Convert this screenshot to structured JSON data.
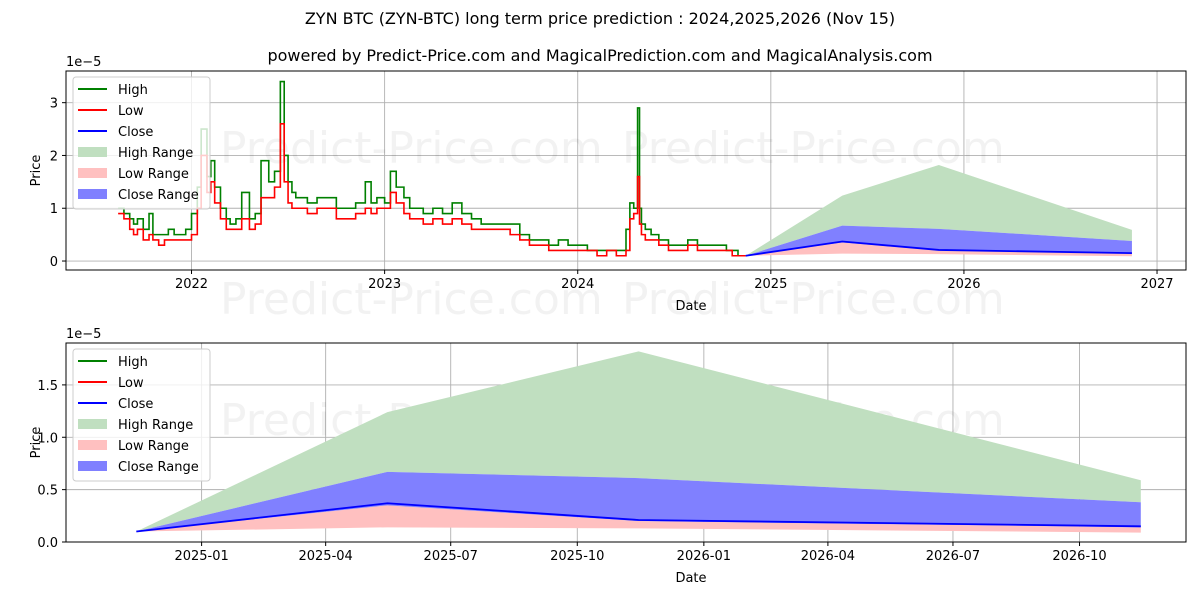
{
  "header": {
    "title": "ZYN BTC (ZYN-BTC) long term price prediction : 2024,2025,2026 (Nov 15)",
    "subtitle": "powered by Predict-Price.com and MagicalPrediction.com and MagicalAnalysis.com"
  },
  "watermark": "Predict-Price.com",
  "colors": {
    "high": "#008000",
    "low": "#ff0000",
    "close": "#0000ff",
    "high_range": "#c0dfc0",
    "low_range": "#ffc0c0",
    "close_range": "#8080ff",
    "grid": "#b0b0b0"
  },
  "legend": [
    {
      "label": "High",
      "kind": "line",
      "color": "#008000"
    },
    {
      "label": "Low",
      "kind": "line",
      "color": "#ff0000"
    },
    {
      "label": "Close",
      "kind": "line",
      "color": "#0000ff"
    },
    {
      "label": "High Range",
      "kind": "patch",
      "color": "#c0dfc0"
    },
    {
      "label": "Low Range",
      "kind": "patch",
      "color": "#ffc0c0"
    },
    {
      "label": "Close Range",
      "kind": "patch",
      "color": "#8080ff"
    }
  ],
  "chart_data": [
    {
      "type": "line",
      "title": "ZYN BTC (ZYN-BTC) long term price prediction : 2024,2025,2026 (Nov 15)",
      "subtitle": "powered by Predict-Price.com and MagicalPrediction.com and MagicalAnalysis.com",
      "xlabel": "Date",
      "ylabel": "Price",
      "y_scale_label": "1e−5",
      "xlim": [
        2021.35,
        2027.15
      ],
      "ylim": [
        -0.17,
        3.6
      ],
      "xticks": [
        2022,
        2023,
        2024,
        2025,
        2026,
        2027
      ],
      "xtick_labels": [
        "2022",
        "2023",
        "2024",
        "2025",
        "2026",
        "2027"
      ],
      "yticks": [
        0,
        1,
        2,
        3
      ],
      "ytick_labels": [
        "0",
        "1",
        "2",
        "3"
      ],
      "grid": true,
      "legend_position": "upper left",
      "history_x": [
        2021.62,
        2021.65,
        2021.68,
        2021.7,
        2021.72,
        2021.75,
        2021.78,
        2021.8,
        2021.83,
        2021.86,
        2021.88,
        2021.91,
        2021.94,
        2021.97,
        2022.0,
        2022.03,
        2022.05,
        2022.08,
        2022.1,
        2022.12,
        2022.15,
        2022.18,
        2022.2,
        2022.23,
        2022.26,
        2022.3,
        2022.33,
        2022.36,
        2022.4,
        2022.43,
        2022.46,
        2022.48,
        2022.5,
        2022.52,
        2022.54,
        2022.57,
        2022.6,
        2022.65,
        2022.7,
        2022.75,
        2022.8,
        2022.85,
        2022.9,
        2022.93,
        2022.96,
        2023.0,
        2023.03,
        2023.06,
        2023.1,
        2023.13,
        2023.16,
        2023.2,
        2023.25,
        2023.3,
        2023.35,
        2023.4,
        2023.45,
        2023.5,
        2023.55,
        2023.6,
        2023.65,
        2023.7,
        2023.75,
        2023.8,
        2023.85,
        2023.9,
        2023.95,
        2024.0,
        2024.05,
        2024.1,
        2024.15,
        2024.2,
        2024.25,
        2024.27,
        2024.29,
        2024.31,
        2024.32,
        2024.33,
        2024.35,
        2024.38,
        2024.42,
        2024.47,
        2024.52,
        2024.57,
        2024.62,
        2024.67,
        2024.72,
        2024.77,
        2024.8,
        2024.83,
        2024.87
      ],
      "high": [
        1.0,
        0.9,
        0.8,
        0.7,
        0.8,
        0.6,
        0.9,
        0.5,
        0.5,
        0.5,
        0.6,
        0.5,
        0.5,
        0.6,
        0.9,
        1.4,
        2.5,
        1.6,
        1.9,
        1.4,
        1.0,
        0.8,
        0.7,
        0.8,
        1.3,
        0.8,
        0.9,
        1.9,
        1.5,
        1.7,
        3.4,
        2.0,
        1.5,
        1.3,
        1.2,
        1.2,
        1.1,
        1.2,
        1.2,
        1.0,
        1.0,
        1.1,
        1.5,
        1.1,
        1.2,
        1.1,
        1.7,
        1.4,
        1.2,
        1.0,
        1.0,
        0.9,
        1.0,
        0.9,
        1.1,
        0.9,
        0.8,
        0.7,
        0.7,
        0.7,
        0.7,
        0.5,
        0.4,
        0.4,
        0.3,
        0.4,
        0.3,
        0.3,
        0.2,
        0.2,
        0.2,
        0.2,
        0.6,
        1.1,
        1.0,
        2.9,
        1.0,
        0.7,
        0.6,
        0.5,
        0.4,
        0.3,
        0.3,
        0.4,
        0.3,
        0.3,
        0.3,
        0.2,
        0.2,
        0.1,
        0.1
      ],
      "low": [
        0.9,
        0.8,
        0.6,
        0.5,
        0.6,
        0.4,
        0.5,
        0.4,
        0.3,
        0.4,
        0.4,
        0.4,
        0.4,
        0.4,
        0.5,
        1.0,
        2.0,
        1.3,
        1.5,
        1.1,
        0.8,
        0.6,
        0.6,
        0.6,
        0.8,
        0.6,
        0.7,
        1.2,
        1.2,
        1.4,
        2.6,
        1.5,
        1.1,
        1.0,
        1.0,
        1.0,
        0.9,
        1.0,
        1.0,
        0.8,
        0.8,
        0.9,
        1.0,
        0.9,
        1.0,
        1.0,
        1.3,
        1.1,
        0.9,
        0.8,
        0.8,
        0.7,
        0.8,
        0.7,
        0.8,
        0.7,
        0.6,
        0.6,
        0.6,
        0.6,
        0.5,
        0.4,
        0.3,
        0.3,
        0.2,
        0.2,
        0.2,
        0.2,
        0.2,
        0.1,
        0.2,
        0.1,
        0.2,
        0.8,
        0.9,
        1.6,
        0.7,
        0.5,
        0.4,
        0.4,
        0.3,
        0.2,
        0.2,
        0.3,
        0.2,
        0.2,
        0.2,
        0.2,
        0.1,
        0.1,
        0.1
      ],
      "forecast_x": [
        2024.87,
        2025.37,
        2025.87,
        2026.87
      ],
      "high_range": {
        "upper": [
          0.1,
          1.24,
          1.82,
          0.59
        ],
        "lower": [
          0.1,
          0.67,
          0.61,
          0.38
        ]
      },
      "close_range": {
        "upper": [
          0.1,
          0.67,
          0.61,
          0.38
        ],
        "lower": [
          0.1,
          0.35,
          0.2,
          0.14
        ]
      },
      "low_range": {
        "upper": [
          0.1,
          0.35,
          0.2,
          0.14
        ],
        "lower": [
          0.1,
          0.14,
          0.13,
          0.09
        ]
      },
      "close": [
        0.1,
        0.37,
        0.21,
        0.15
      ]
    },
    {
      "type": "area",
      "xlabel": "Date",
      "ylabel": "Price",
      "y_scale_label": "1e−5",
      "xlim": [
        2024.73,
        2026.96
      ],
      "ylim": [
        0.0,
        1.9
      ],
      "xticks": [
        2025.0,
        2025.247,
        2025.496,
        2025.748,
        2026.0,
        2026.247,
        2026.496,
        2026.748
      ],
      "xtick_labels": [
        "2025-01",
        "2025-04",
        "2025-07",
        "2025-10",
        "2026-01",
        "2026-04",
        "2026-07",
        "2026-10"
      ],
      "yticks": [
        0.0,
        0.5,
        1.0,
        1.5
      ],
      "ytick_labels": [
        "0.0",
        "0.5",
        "1.0",
        "1.5"
      ],
      "grid": true,
      "legend_position": "upper left",
      "forecast_x": [
        2024.87,
        2025.37,
        2025.87,
        2026.87
      ],
      "forecast_labels": [
        "2024-11-15",
        "2025-05-15",
        "2025-11-15",
        "2026-11-15"
      ],
      "high_range": {
        "upper": [
          0.1,
          1.24,
          1.82,
          0.59
        ],
        "lower": [
          0.1,
          0.67,
          0.61,
          0.38
        ]
      },
      "close_range": {
        "upper": [
          0.1,
          0.67,
          0.61,
          0.38
        ],
        "lower": [
          0.1,
          0.35,
          0.2,
          0.14
        ]
      },
      "low_range": {
        "upper": [
          0.1,
          0.35,
          0.2,
          0.14
        ],
        "lower": [
          0.1,
          0.14,
          0.13,
          0.09
        ]
      },
      "close": [
        0.1,
        0.37,
        0.21,
        0.15
      ]
    }
  ]
}
